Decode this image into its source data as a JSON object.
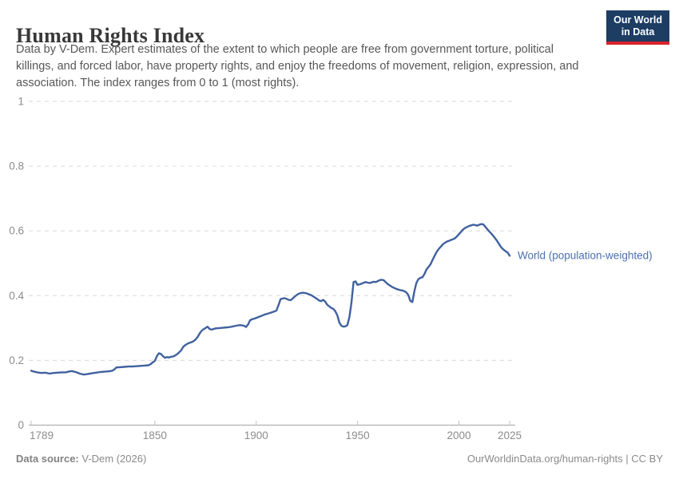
{
  "header": {
    "title": "Human Rights Index",
    "subtitle_lines": [
      "Data by V-Dem. Expert estimates of the extent to which people are free from government torture, political",
      "killings, and forced labor, have property rights, and enjoy the freedoms of movement, religion, expression, and",
      "association. The index ranges from 0 to 1 (most rights)."
    ],
    "logo": {
      "line1": "Our World",
      "line2": "in Data"
    }
  },
  "footer": {
    "source_label": "Data source:",
    "source_value": " V-Dem (2026)",
    "right_text": "OurWorldinData.org/human-rights | CC BY"
  },
  "colors": {
    "line": "#40619e",
    "entity_label": "#4a70b0",
    "logo_bg": "#1d3d63",
    "logo_accent": "#d8232a",
    "grid": "#dadada",
    "axis": "#a3a3a3",
    "tick_text": "#8c8c8c"
  },
  "chart_data": {
    "type": "line",
    "title": "Human Rights Index",
    "xlabel": "",
    "ylabel": "",
    "xlim": [
      1789,
      2025
    ],
    "ylim": [
      0,
      1
    ],
    "x_ticks": [
      1789,
      1850,
      1900,
      1950,
      2000,
      2025
    ],
    "y_ticks": [
      0,
      0.2,
      0.4,
      0.6,
      0.8,
      1
    ],
    "grid": "horizontal-dashed",
    "legend_position": "right-of-line",
    "series": [
      {
        "name": "World (population-weighted)",
        "points": [
          [
            1789,
            0.168
          ],
          [
            1790,
            0.166
          ],
          [
            1792,
            0.163
          ],
          [
            1794,
            0.161
          ],
          [
            1796,
            0.162
          ],
          [
            1798,
            0.159
          ],
          [
            1800,
            0.161
          ],
          [
            1802,
            0.162
          ],
          [
            1804,
            0.163
          ],
          [
            1806,
            0.163
          ],
          [
            1808,
            0.166
          ],
          [
            1809,
            0.167
          ],
          [
            1811,
            0.164
          ],
          [
            1813,
            0.159
          ],
          [
            1815,
            0.156
          ],
          [
            1817,
            0.158
          ],
          [
            1819,
            0.16
          ],
          [
            1821,
            0.162
          ],
          [
            1823,
            0.164
          ],
          [
            1825,
            0.165
          ],
          [
            1827,
            0.166
          ],
          [
            1829,
            0.168
          ],
          [
            1830,
            0.172
          ],
          [
            1831,
            0.178
          ],
          [
            1833,
            0.179
          ],
          [
            1835,
            0.18
          ],
          [
            1837,
            0.181
          ],
          [
            1839,
            0.181
          ],
          [
            1841,
            0.182
          ],
          [
            1843,
            0.183
          ],
          [
            1845,
            0.184
          ],
          [
            1847,
            0.185
          ],
          [
            1848,
            0.189
          ],
          [
            1849,
            0.194
          ],
          [
            1850,
            0.198
          ],
          [
            1851,
            0.213
          ],
          [
            1852,
            0.222
          ],
          [
            1853,
            0.22
          ],
          [
            1854,
            0.213
          ],
          [
            1855,
            0.208
          ],
          [
            1856,
            0.21
          ],
          [
            1857,
            0.209
          ],
          [
            1858,
            0.211
          ],
          [
            1859,
            0.212
          ],
          [
            1860,
            0.215
          ],
          [
            1861,
            0.219
          ],
          [
            1862,
            0.225
          ],
          [
            1863,
            0.231
          ],
          [
            1864,
            0.242
          ],
          [
            1865,
            0.247
          ],
          [
            1866,
            0.251
          ],
          [
            1867,
            0.254
          ],
          [
            1868,
            0.256
          ],
          [
            1869,
            0.259
          ],
          [
            1870,
            0.264
          ],
          [
            1871,
            0.271
          ],
          [
            1872,
            0.282
          ],
          [
            1873,
            0.291
          ],
          [
            1874,
            0.296
          ],
          [
            1875,
            0.3
          ],
          [
            1876,
            0.304
          ],
          [
            1877,
            0.297
          ],
          [
            1878,
            0.295
          ],
          [
            1879,
            0.297
          ],
          [
            1880,
            0.299
          ],
          [
            1882,
            0.3
          ],
          [
            1884,
            0.301
          ],
          [
            1886,
            0.302
          ],
          [
            1888,
            0.304
          ],
          [
            1890,
            0.307
          ],
          [
            1892,
            0.309
          ],
          [
            1894,
            0.307
          ],
          [
            1895,
            0.303
          ],
          [
            1896,
            0.311
          ],
          [
            1897,
            0.324
          ],
          [
            1898,
            0.327
          ],
          [
            1899,
            0.329
          ],
          [
            1900,
            0.331
          ],
          [
            1902,
            0.336
          ],
          [
            1904,
            0.341
          ],
          [
            1906,
            0.345
          ],
          [
            1908,
            0.349
          ],
          [
            1910,
            0.354
          ],
          [
            1911,
            0.371
          ],
          [
            1912,
            0.389
          ],
          [
            1913,
            0.391
          ],
          [
            1914,
            0.392
          ],
          [
            1915,
            0.39
          ],
          [
            1916,
            0.387
          ],
          [
            1917,
            0.386
          ],
          [
            1918,
            0.391
          ],
          [
            1919,
            0.397
          ],
          [
            1920,
            0.402
          ],
          [
            1921,
            0.406
          ],
          [
            1922,
            0.408
          ],
          [
            1923,
            0.409
          ],
          [
            1924,
            0.408
          ],
          [
            1925,
            0.407
          ],
          [
            1926,
            0.404
          ],
          [
            1927,
            0.402
          ],
          [
            1928,
            0.398
          ],
          [
            1929,
            0.394
          ],
          [
            1930,
            0.39
          ],
          [
            1931,
            0.385
          ],
          [
            1932,
            0.383
          ],
          [
            1933,
            0.387
          ],
          [
            1934,
            0.382
          ],
          [
            1935,
            0.372
          ],
          [
            1936,
            0.367
          ],
          [
            1937,
            0.362
          ],
          [
            1938,
            0.359
          ],
          [
            1939,
            0.352
          ],
          [
            1940,
            0.339
          ],
          [
            1941,
            0.317
          ],
          [
            1942,
            0.307
          ],
          [
            1943,
            0.304
          ],
          [
            1944,
            0.305
          ],
          [
            1945,
            0.309
          ],
          [
            1946,
            0.335
          ],
          [
            1947,
            0.379
          ],
          [
            1948,
            0.442
          ],
          [
            1949,
            0.444
          ],
          [
            1950,
            0.433
          ],
          [
            1951,
            0.435
          ],
          [
            1952,
            0.437
          ],
          [
            1953,
            0.44
          ],
          [
            1954,
            0.442
          ],
          [
            1955,
            0.44
          ],
          [
            1956,
            0.439
          ],
          [
            1957,
            0.441
          ],
          [
            1958,
            0.443
          ],
          [
            1959,
            0.442
          ],
          [
            1960,
            0.445
          ],
          [
            1961,
            0.448
          ],
          [
            1962,
            0.449
          ],
          [
            1963,
            0.447
          ],
          [
            1964,
            0.441
          ],
          [
            1965,
            0.435
          ],
          [
            1966,
            0.431
          ],
          [
            1967,
            0.427
          ],
          [
            1968,
            0.424
          ],
          [
            1969,
            0.421
          ],
          [
            1970,
            0.419
          ],
          [
            1971,
            0.417
          ],
          [
            1972,
            0.416
          ],
          [
            1973,
            0.414
          ],
          [
            1974,
            0.41
          ],
          [
            1975,
            0.402
          ],
          [
            1976,
            0.384
          ],
          [
            1977,
            0.38
          ],
          [
            1978,
            0.413
          ],
          [
            1979,
            0.439
          ],
          [
            1980,
            0.451
          ],
          [
            1981,
            0.455
          ],
          [
            1982,
            0.457
          ],
          [
            1983,
            0.467
          ],
          [
            1984,
            0.481
          ],
          [
            1985,
            0.489
          ],
          [
            1986,
            0.497
          ],
          [
            1987,
            0.511
          ],
          [
            1988,
            0.523
          ],
          [
            1989,
            0.535
          ],
          [
            1990,
            0.544
          ],
          [
            1991,
            0.551
          ],
          [
            1992,
            0.558
          ],
          [
            1993,
            0.563
          ],
          [
            1994,
            0.567
          ],
          [
            1995,
            0.569
          ],
          [
            1996,
            0.572
          ],
          [
            1997,
            0.574
          ],
          [
            1998,
            0.577
          ],
          [
            1999,
            0.583
          ],
          [
            2000,
            0.59
          ],
          [
            2001,
            0.597
          ],
          [
            2002,
            0.604
          ],
          [
            2003,
            0.609
          ],
          [
            2004,
            0.612
          ],
          [
            2005,
            0.615
          ],
          [
            2006,
            0.617
          ],
          [
            2007,
            0.619
          ],
          [
            2008,
            0.618
          ],
          [
            2009,
            0.616
          ],
          [
            2010,
            0.619
          ],
          [
            2011,
            0.621
          ],
          [
            2012,
            0.62
          ],
          [
            2013,
            0.613
          ],
          [
            2014,
            0.605
          ],
          [
            2015,
            0.598
          ],
          [
            2016,
            0.591
          ],
          [
            2017,
            0.584
          ],
          [
            2018,
            0.576
          ],
          [
            2019,
            0.567
          ],
          [
            2020,
            0.557
          ],
          [
            2021,
            0.548
          ],
          [
            2022,
            0.542
          ],
          [
            2023,
            0.537
          ],
          [
            2024,
            0.533
          ],
          [
            2025,
            0.523
          ]
        ]
      }
    ]
  }
}
